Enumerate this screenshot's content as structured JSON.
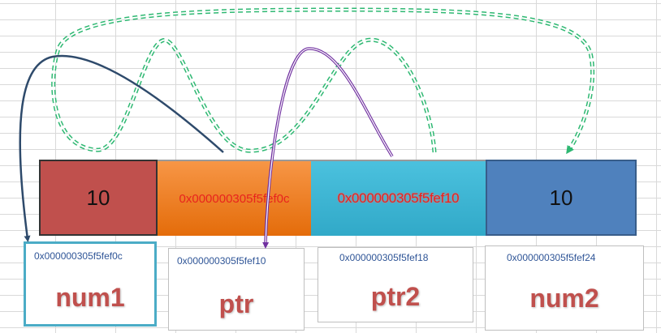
{
  "memory": [
    {
      "name": "num1",
      "value": "10",
      "address": "0x000000305f5fef0c"
    },
    {
      "name": "ptr",
      "value": "0x000000305f5fef0c",
      "address": "0x000000305f5fef10"
    },
    {
      "name": "ptr2",
      "value": "0x000000305f5fef10",
      "address": "0x000000305f5fef18"
    },
    {
      "name": "num2",
      "value": "10",
      "address": "0x000000305f5fef24"
    }
  ],
  "colors": {
    "num1_block": "#c0504d",
    "ptr_block": "#f79646",
    "ptr2_block": "#31a9c8",
    "num2_block": "#4f81bd",
    "name_text": "#c0504d",
    "pointer_value_text": "#e8231e",
    "arrow_ptr": "#2e4a6b",
    "arrow_ptr2": "#7030a0",
    "arrow_copy": "#2eb872"
  }
}
